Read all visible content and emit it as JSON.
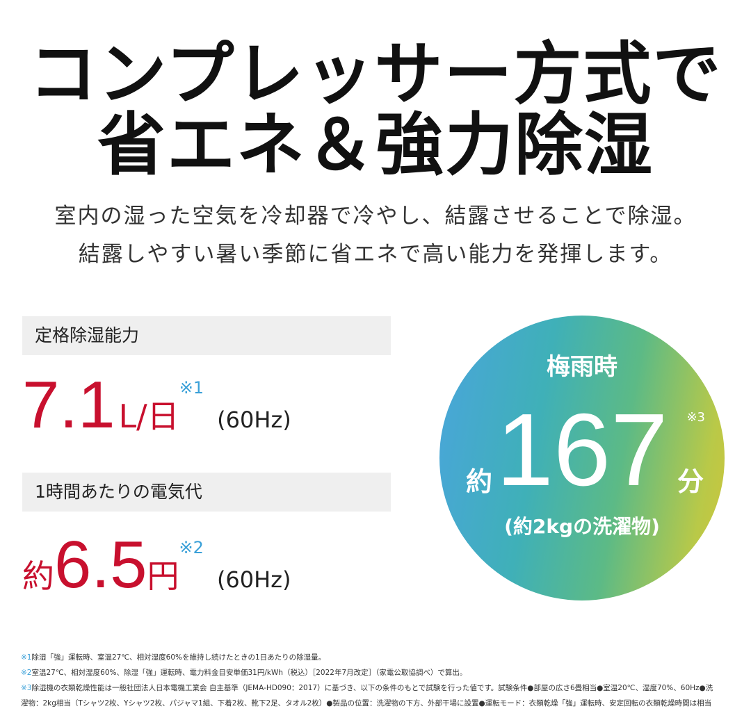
{
  "headline": {
    "line1": "コンプレッサー方式で",
    "line2": "省エネ＆強力除湿"
  },
  "subtitle": {
    "line1": "室内の湿った空気を冷却器で冷やし、結露させることで除湿。",
    "line2": "結露しやすい暑い季節に省エネで高い能力を発揮します。"
  },
  "spec1": {
    "label": "定格除湿能力",
    "value": "7.1",
    "unit": "L/日",
    "note_mark": "※1",
    "freq": "(60Hz)"
  },
  "spec2": {
    "label": "1時間あたりの電気代",
    "prefix": "約",
    "value": "6.5",
    "unit": "円",
    "note_mark": "※2",
    "freq": "(60Hz)"
  },
  "circle": {
    "title": "梅雨時",
    "prefix": "約",
    "value": "167",
    "suffix": "分",
    "note_mark": "※3",
    "caption": "(約2kgの洗濯物)",
    "colors": [
      "#4aa5dc",
      "#5cba86",
      "#cfc43a"
    ]
  },
  "footnotes": [
    {
      "mark": "※1",
      "text": "除湿「強」運転時、室温27℃、相対湿度60%を維持し続けたときの1日あたりの除湿量。"
    },
    {
      "mark": "※2",
      "text": "室温27℃、相対湿度60%、除湿「強」運転時、電力料金目安単価31円/kWh（税込）［2022年7月改定］（家電公取協調べ）で算出。"
    },
    {
      "mark": "※3",
      "text": "除湿機の衣類乾燥性能は一般社団法人日本電機工業会 自主基準（JEMA-HD090：2017）に基づき、以下の条件のもとで試験を行った値です。試験条件●部屋の広さ6畳相当●室温20℃、湿度70%、60Hz●洗"
    },
    {
      "mark": "",
      "text": "濯物：2kg相当（Tシャツ2枚、Yシャツ2枚、パジャマ1組、下着2枚、靴下2足、タオル2枚）●製品の位置：洗濯物の下方、外部干場に設置●運転モード：衣類乾燥「強」運転時、安定回転の衣類乾燥時間は相当"
    }
  ],
  "accent_red": "#c8102e",
  "accent_blue": "#3aa0d8"
}
